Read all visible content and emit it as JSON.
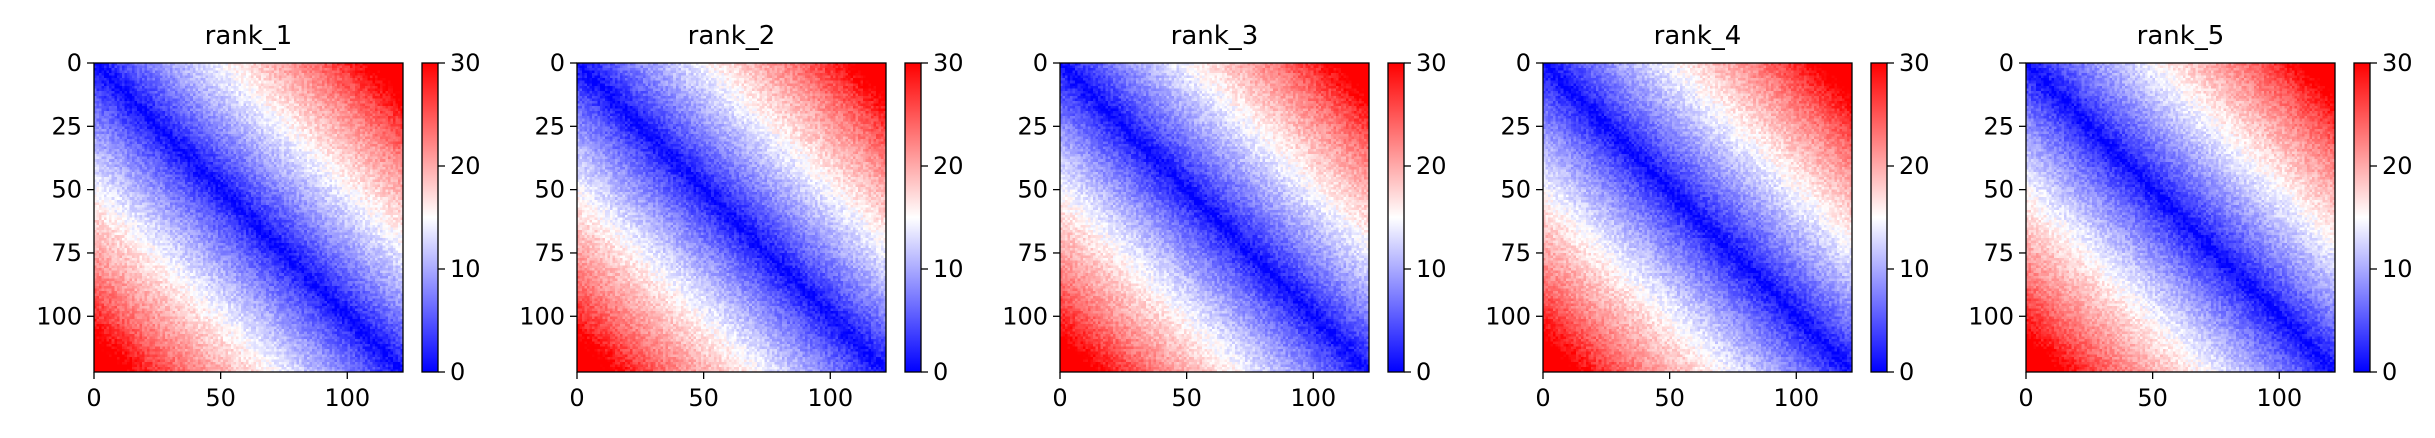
{
  "figure": {
    "colormap": {
      "name": "bwr",
      "low": "#0000ff",
      "mid": "#ffffff",
      "high": "#ff0000"
    },
    "background": "#ffffff",
    "axis_color": "#000000"
  },
  "chart_data": [
    {
      "type": "heatmap",
      "title": "rank_1",
      "matrix_size": 122,
      "xlim": [
        0,
        122
      ],
      "ylim": [
        122,
        0
      ],
      "xticks": [
        0,
        50,
        100
      ],
      "yticks": [
        0,
        25,
        50,
        75,
        100
      ],
      "xtick_labels": [
        "0",
        "50",
        "100"
      ],
      "ytick_labels": [
        "0",
        "25",
        "50",
        "75",
        "100"
      ],
      "color_range": [
        0,
        30
      ],
      "colorbar_ticks": [
        0,
        10,
        20,
        30
      ],
      "colorbar_tick_labels": [
        "0",
        "10",
        "20",
        "30"
      ],
      "pattern": "distance matrix: ~0 on diagonal, rising to ~30 at top-right and bottom-left corners"
    },
    {
      "type": "heatmap",
      "title": "rank_2",
      "matrix_size": 122,
      "xlim": [
        0,
        122
      ],
      "ylim": [
        122,
        0
      ],
      "xticks": [
        0,
        50,
        100
      ],
      "yticks": [
        0,
        25,
        50,
        75,
        100
      ],
      "xtick_labels": [
        "0",
        "50",
        "100"
      ],
      "ytick_labels": [
        "0",
        "25",
        "50",
        "75",
        "100"
      ],
      "color_range": [
        0,
        30
      ],
      "colorbar_ticks": [
        0,
        10,
        20,
        30
      ],
      "colorbar_tick_labels": [
        "0",
        "10",
        "20",
        "30"
      ],
      "pattern": "distance matrix: ~0 on diagonal, rising to ~30 at top-right and bottom-left corners"
    },
    {
      "type": "heatmap",
      "title": "rank_3",
      "matrix_size": 122,
      "xlim": [
        0,
        122
      ],
      "ylim": [
        122,
        0
      ],
      "xticks": [
        0,
        50,
        100
      ],
      "yticks": [
        0,
        25,
        50,
        75,
        100
      ],
      "xtick_labels": [
        "0",
        "50",
        "100"
      ],
      "ytick_labels": [
        "0",
        "25",
        "50",
        "75",
        "100"
      ],
      "color_range": [
        0,
        30
      ],
      "colorbar_ticks": [
        0,
        10,
        20,
        30
      ],
      "colorbar_tick_labels": [
        "0",
        "10",
        "20",
        "30"
      ],
      "pattern": "distance matrix: ~0 on diagonal, rising to ~30 at top-right and bottom-left corners"
    },
    {
      "type": "heatmap",
      "title": "rank_4",
      "matrix_size": 122,
      "xlim": [
        0,
        122
      ],
      "ylim": [
        122,
        0
      ],
      "xticks": [
        0,
        50,
        100
      ],
      "yticks": [
        0,
        25,
        50,
        75,
        100
      ],
      "xtick_labels": [
        "0",
        "50",
        "100"
      ],
      "ytick_labels": [
        "0",
        "25",
        "50",
        "75",
        "100"
      ],
      "color_range": [
        0,
        30
      ],
      "colorbar_ticks": [
        0,
        10,
        20,
        30
      ],
      "colorbar_tick_labels": [
        "0",
        "10",
        "20",
        "30"
      ],
      "pattern": "distance matrix: ~0 on diagonal, rising to ~30 at top-right and bottom-left corners"
    },
    {
      "type": "heatmap",
      "title": "rank_5",
      "matrix_size": 122,
      "xlim": [
        0,
        122
      ],
      "ylim": [
        122,
        0
      ],
      "xticks": [
        0,
        50,
        100
      ],
      "yticks": [
        0,
        25,
        50,
        75,
        100
      ],
      "xtick_labels": [
        "0",
        "50",
        "100"
      ],
      "ytick_labels": [
        "0",
        "25",
        "50",
        "75",
        "100"
      ],
      "color_range": [
        0,
        30
      ],
      "colorbar_ticks": [
        0,
        10,
        20,
        30
      ],
      "colorbar_tick_labels": [
        "0",
        "10",
        "20",
        "30"
      ],
      "pattern": "distance matrix: ~0 on diagonal, rising to ~30 at top-right and bottom-left corners"
    }
  ]
}
